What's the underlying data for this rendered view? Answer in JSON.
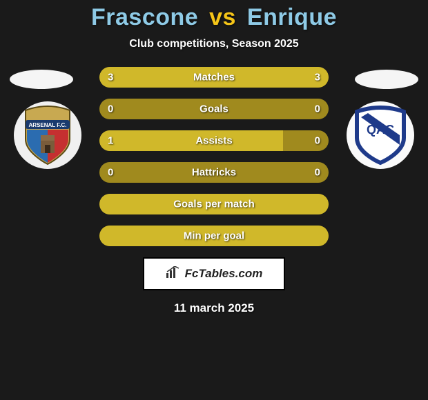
{
  "title": {
    "player1": "Frascone",
    "vs": "vs",
    "player2": "Enrique",
    "player1_color": "#8ecae6",
    "vs_color": "#f5c518",
    "player2_color": "#8ecae6"
  },
  "subtitle": "Club competitions, Season 2025",
  "colors": {
    "background": "#1a1a1a",
    "bar_base": "#a08a1e",
    "bar_fill": "#d0b82a",
    "text": "#ffffff"
  },
  "bars_width": 332,
  "stats": [
    {
      "label": "Matches",
      "left_val": "3",
      "right_val": "3",
      "left_pct": 50,
      "right_pct": 50
    },
    {
      "label": "Goals",
      "left_val": "0",
      "right_val": "0",
      "left_pct": 0,
      "right_pct": 0
    },
    {
      "label": "Assists",
      "left_val": "1",
      "right_val": "0",
      "left_pct": 80,
      "right_pct": 0
    },
    {
      "label": "Hattricks",
      "left_val": "0",
      "right_val": "0",
      "left_pct": 0,
      "right_pct": 0
    },
    {
      "label": "Goals per match",
      "left_val": "",
      "right_val": "",
      "left_pct": 100,
      "right_pct": 0,
      "full": true
    },
    {
      "label": "Min per goal",
      "left_val": "",
      "right_val": "",
      "left_pct": 100,
      "right_pct": 0,
      "full": true
    }
  ],
  "footer": {
    "label": "FcTables.com",
    "icon_glyph": "📊"
  },
  "date": "11 march 2025",
  "crest_left": {
    "bg": "#f0f0f0",
    "shield_top": "#c8a951",
    "shield_bottom_left": "#2b6cb0",
    "shield_bottom_right": "#c53030",
    "banner_text": "ARSENAL F.C.",
    "banner_bg": "#1a3a6e",
    "banner_fg": "#ffffff"
  },
  "crest_right": {
    "bg": "#fafafa",
    "shield_fill": "#ffffff",
    "shield_border": "#1e3a8a",
    "stripe": "#1e3a8a",
    "letters": "QAC",
    "letters_fg": "#1e3a8a"
  }
}
